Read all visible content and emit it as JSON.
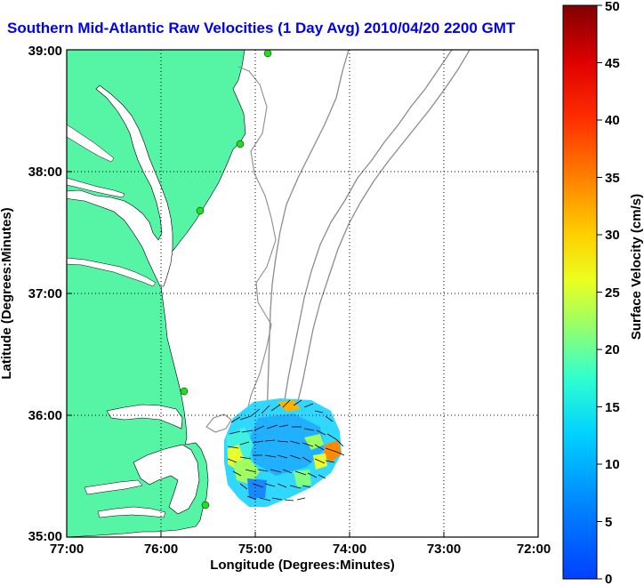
{
  "title": "Southern Mid-Atlantic Raw Velocities (1 Day Avg) 2010/04/20 2200 GMT",
  "map": {
    "xlabel": "Longitude (Degrees:Minutes)",
    "ylabel": "Latitude (Degrees:Minutes)",
    "lon_ticks": [
      "77:00",
      "76:00",
      "75:00",
      "74:00",
      "73:00",
      "72:00"
    ],
    "lat_ticks": [
      "39:00",
      "38:00",
      "37:00",
      "36:00",
      "35:00"
    ],
    "land_color": "#55f5a5",
    "contour_color": "#8c8c8c",
    "station_color": "#22dd22"
  },
  "colorbar": {
    "label": "Surface Velocity (cm/s)",
    "ticks": [
      "50",
      "45",
      "40",
      "35",
      "30",
      "25",
      "20",
      "15",
      "10",
      "5",
      "0"
    ],
    "min": 0,
    "max": 50
  }
}
